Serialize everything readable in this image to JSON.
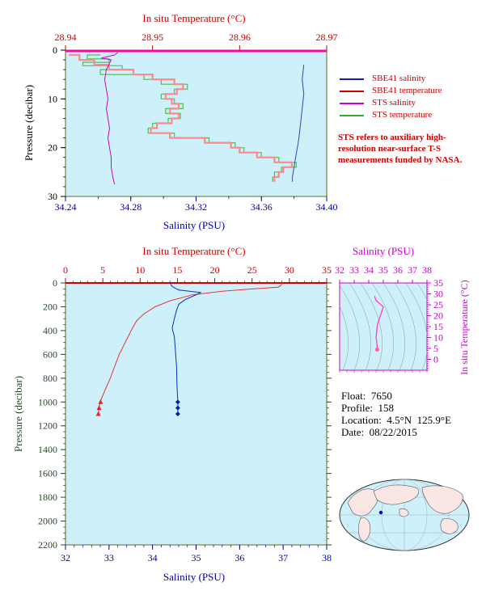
{
  "chart_data": [
    {
      "type": "line",
      "id": "top-profile",
      "title": "",
      "top_axis": {
        "label": "In situ Temperature (°C)",
        "range": [
          28.94,
          28.97
        ],
        "ticks": [
          "28.94",
          "28.95",
          "28.96",
          "28.97"
        ],
        "color": "#cc0000"
      },
      "bottom_axis": {
        "label": "Salinity (PSU)",
        "range": [
          34.24,
          34.4
        ],
        "ticks": [
          "34.24",
          "34.28",
          "34.32",
          "34.36",
          "34.40"
        ],
        "color": "#0000aa"
      },
      "left_axis": {
        "label": "Pressure (decibar)",
        "range": [
          0,
          30
        ],
        "inverted": true,
        "ticks": [
          "0",
          "10",
          "20",
          "30"
        ]
      },
      "legend_placement": "right",
      "series": [
        {
          "name": "SBE41 salinity",
          "color": "#1a1aaa",
          "points": [
            [
              34.386,
              3
            ],
            [
              34.385,
              6
            ],
            [
              34.386,
              9
            ],
            [
              34.385,
              12
            ],
            [
              34.384,
              15
            ],
            [
              34.383,
              18
            ],
            [
              34.382,
              20
            ],
            [
              34.381,
              22
            ],
            [
              34.38,
              24
            ],
            [
              34.379,
              26
            ],
            [
              34.379,
              27
            ]
          ]
        },
        {
          "name": "SBE41 temperature",
          "color": "#cc0000",
          "points": [
            [
              28.9404,
              1
            ],
            [
              28.9416,
              2
            ],
            [
              28.9433,
              3
            ],
            [
              28.945,
              4
            ],
            [
              28.9478,
              5
            ],
            [
              28.95,
              6
            ],
            [
              28.9525,
              7
            ],
            [
              28.9535,
              8
            ],
            [
              28.9528,
              9
            ],
            [
              28.9515,
              10
            ],
            [
              28.9522,
              11
            ],
            [
              28.953,
              12
            ],
            [
              28.952,
              13
            ],
            [
              28.953,
              14
            ],
            [
              28.9522,
              15
            ],
            [
              28.9505,
              16
            ],
            [
              28.9498,
              17
            ],
            [
              28.952,
              18
            ],
            [
              28.956,
              19
            ],
            [
              28.959,
              20
            ],
            [
              28.96,
              21
            ],
            [
              28.962,
              22
            ],
            [
              28.964,
              23
            ],
            [
              28.966,
              24
            ],
            [
              28.965,
              25
            ],
            [
              28.9645,
              26
            ],
            [
              28.964,
              27
            ]
          ]
        },
        {
          "name": "STS salinity",
          "color": "#cc00cc",
          "points": [
            [
              34.272,
              0.5
            ],
            [
              34.27,
              1
            ],
            [
              34.262,
              1.6
            ],
            [
              34.268,
              2
            ],
            [
              34.265,
              4
            ],
            [
              34.264,
              6
            ],
            [
              34.265,
              8
            ],
            [
              34.266,
              10
            ],
            [
              34.265,
              12
            ],
            [
              34.266,
              14
            ],
            [
              34.267,
              16
            ],
            [
              34.266,
              18
            ],
            [
              34.267,
              20
            ],
            [
              34.268,
              22
            ],
            [
              34.268,
              24
            ],
            [
              34.269,
              26
            ],
            [
              34.27,
              27.5
            ]
          ]
        },
        {
          "name": "STS temperature",
          "color": "#33aa33",
          "points": [
            [
              28.944,
              1
            ],
            [
              28.9425,
              1.8
            ],
            [
              28.945,
              2.5
            ],
            [
              28.942,
              3.2
            ],
            [
              28.9465,
              4
            ],
            [
              28.944,
              5
            ],
            [
              28.949,
              6
            ],
            [
              28.951,
              7
            ],
            [
              28.954,
              8
            ],
            [
              28.9525,
              9
            ],
            [
              28.951,
              10
            ],
            [
              28.9525,
              11
            ],
            [
              28.9535,
              12
            ],
            [
              28.9515,
              13
            ],
            [
              28.9532,
              14
            ],
            [
              28.9518,
              15
            ],
            [
              28.95,
              16
            ],
            [
              28.9495,
              17
            ],
            [
              28.9525,
              18
            ],
            [
              28.9565,
              19
            ],
            [
              28.9595,
              20
            ],
            [
              28.9605,
              21
            ],
            [
              28.9625,
              22
            ],
            [
              28.9645,
              23
            ],
            [
              28.9665,
              24
            ],
            [
              28.9648,
              25
            ],
            [
              28.964,
              26
            ],
            [
              28.9638,
              27
            ]
          ]
        }
      ],
      "legend": [
        "SBE41 salinity",
        "SBE41 temperature",
        "STS salinity",
        "STS temperature"
      ],
      "annotation": "STS refers to auxiliary high-resolution near-surface T-S measurements funded by NASA."
    },
    {
      "type": "line",
      "id": "full-profile",
      "top_axis": {
        "label": "In situ Temperature (°C)",
        "range": [
          0,
          35
        ],
        "ticks": [
          "0",
          "5",
          "10",
          "15",
          "20",
          "25",
          "30",
          "35"
        ],
        "color": "#cc0000"
      },
      "bottom_axis": {
        "label": "Salinity (PSU)",
        "range": [
          32,
          38
        ],
        "ticks": [
          "32",
          "33",
          "34",
          "35",
          "36",
          "37",
          "38"
        ],
        "color": "#0000aa"
      },
      "left_axis": {
        "label": "Pressure (decibar)",
        "range": [
          0,
          2200
        ],
        "inverted": true,
        "ticks": [
          "0",
          "200",
          "400",
          "600",
          "800",
          "1000",
          "1200",
          "1400",
          "1600",
          "1800",
          "2000",
          "2200"
        ]
      },
      "series": [
        {
          "name": "Temperature",
          "color": "#ee3333",
          "points": [
            [
              29.0,
              0
            ],
            [
              28.9,
              20
            ],
            [
              28.5,
              35
            ],
            [
              25,
              50
            ],
            [
              21,
              70
            ],
            [
              17,
              100
            ],
            [
              14,
              150
            ],
            [
              12,
              200
            ],
            [
              10.5,
              260
            ],
            [
              9.5,
              320
            ],
            [
              8.8,
              400
            ],
            [
              8.0,
              500
            ],
            [
              7.2,
              600
            ],
            [
              6.6,
              700
            ],
            [
              6.0,
              800
            ],
            [
              5.3,
              900
            ],
            [
              4.7,
              990
            ],
            [
              4.5,
              1050
            ],
            [
              4.4,
              1100
            ]
          ]
        },
        {
          "name": "Salinity",
          "color": "#0033cc",
          "points": [
            [
              34.4,
              0
            ],
            [
              34.45,
              30
            ],
            [
              34.6,
              60
            ],
            [
              35.1,
              80
            ],
            [
              35.0,
              100
            ],
            [
              34.75,
              140
            ],
            [
              34.6,
              180
            ],
            [
              34.55,
              230
            ],
            [
              34.5,
              300
            ],
            [
              34.45,
              380
            ],
            [
              34.5,
              450
            ],
            [
              34.52,
              550
            ],
            [
              34.55,
              700
            ],
            [
              34.56,
              850
            ],
            [
              34.58,
              1000
            ],
            [
              34.58,
              1100
            ]
          ]
        }
      ],
      "markers": {
        "temperature_triangles": [
          [
            4.7,
            1000
          ],
          [
            4.5,
            1050
          ],
          [
            4.4,
            1100
          ]
        ],
        "salinity_diamonds": [
          [
            34.58,
            1000
          ],
          [
            34.58,
            1050
          ],
          [
            34.58,
            1100
          ]
        ]
      }
    },
    {
      "type": "scatter",
      "id": "ts-diagram",
      "top_axis": {
        "label": "Salinity (PSU)",
        "range": [
          32,
          38
        ],
        "ticks": [
          "32",
          "33",
          "34",
          "35",
          "36",
          "37",
          "38"
        ],
        "color": "#cc00cc"
      },
      "right_axis": {
        "label": "In situ Temperature (°C)",
        "range": [
          -5,
          35
        ],
        "ticks": [
          "0",
          "5",
          "10",
          "15",
          "20",
          "25",
          "30",
          "35"
        ],
        "color": "#cc00cc"
      },
      "series": [
        {
          "name": "T-S",
          "color": "#ff33cc",
          "points": [
            [
              34.4,
              29
            ],
            [
              34.5,
              27
            ],
            [
              35.0,
              24
            ],
            [
              34.8,
              20
            ],
            [
              34.6,
              16
            ],
            [
              34.55,
              13
            ],
            [
              34.5,
              10
            ],
            [
              34.55,
              8
            ],
            [
              34.57,
              6
            ],
            [
              34.58,
              4.5
            ]
          ]
        }
      ]
    }
  ],
  "float_info": {
    "float": "Float:  7650",
    "profile": "Profile:  158",
    "location": "Location:  4.5°N  125.9°E",
    "date": "Date:  08/22/2015"
  }
}
